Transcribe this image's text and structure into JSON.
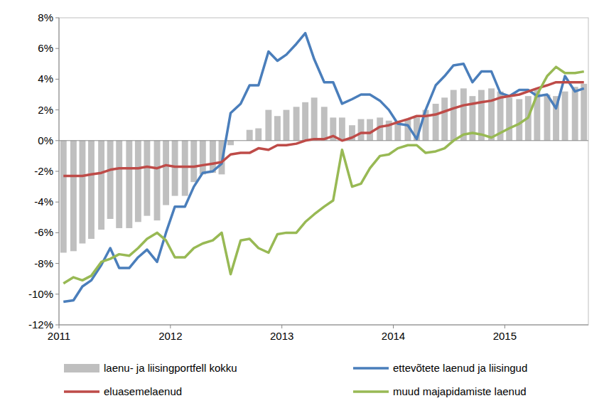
{
  "chart_data": {
    "type": "line",
    "x": [
      2011.04,
      2011.13,
      2011.21,
      2011.29,
      2011.38,
      2011.46,
      2011.54,
      2011.63,
      2011.71,
      2011.79,
      2011.88,
      2011.96,
      2012.04,
      2012.13,
      2012.21,
      2012.29,
      2012.38,
      2012.46,
      2012.54,
      2012.63,
      2012.71,
      2012.79,
      2012.88,
      2012.96,
      2013.04,
      2013.13,
      2013.21,
      2013.29,
      2013.38,
      2013.46,
      2013.54,
      2013.63,
      2013.71,
      2013.79,
      2013.88,
      2013.96,
      2014.04,
      2014.13,
      2014.21,
      2014.29,
      2014.38,
      2014.46,
      2014.54,
      2014.63,
      2014.71,
      2014.79,
      2014.88,
      2014.96,
      2015.04,
      2015.13,
      2015.21,
      2015.29,
      2015.38,
      2015.46,
      2015.54,
      2015.63,
      2015.71
    ],
    "series": [
      {
        "name": "laenu- ja liisingportfell kokku",
        "type": "bar",
        "color": "#bfbfbf",
        "values": [
          -7.3,
          -7.2,
          -6.7,
          -6.4,
          -5.8,
          -5.1,
          -5.7,
          -5.7,
          -5.3,
          -4.9,
          -5.2,
          -4.2,
          -3.6,
          -3.6,
          -2.7,
          -2.2,
          -2.1,
          -2.2,
          -0.3,
          0.0,
          0.7,
          0.8,
          2.0,
          1.6,
          2.0,
          2.2,
          2.5,
          2.8,
          2.2,
          1.5,
          1.5,
          1.0,
          1.4,
          1.4,
          1.5,
          1.3,
          1.3,
          1.4,
          1.5,
          2.0,
          2.4,
          2.8,
          3.3,
          3.4,
          2.9,
          3.3,
          3.4,
          3.2,
          2.8,
          2.7,
          2.9,
          3.3,
          3.0,
          2.9,
          3.2,
          3.5,
          3.7
        ]
      },
      {
        "name": "ettevõtete laenud ja liisingud",
        "type": "line",
        "color": "#4a7ebb",
        "values": [
          -10.5,
          -10.4,
          -9.5,
          -9.1,
          -8.1,
          -7.0,
          -8.3,
          -8.3,
          -7.6,
          -7.1,
          -7.9,
          -6.0,
          -4.3,
          -4.3,
          -3.0,
          -2.1,
          -2.0,
          -1.5,
          1.8,
          2.4,
          3.6,
          3.6,
          5.8,
          5.2,
          5.6,
          6.3,
          7.0,
          5.3,
          3.8,
          3.8,
          2.4,
          2.7,
          3.0,
          3.0,
          2.6,
          2.0,
          1.1,
          1.0,
          0.1,
          2.0,
          3.6,
          4.2,
          4.9,
          5.0,
          3.8,
          4.5,
          4.5,
          3.1,
          2.9,
          3.3,
          3.3,
          2.9,
          3.0,
          2.1,
          4.2,
          3.2,
          3.4
        ]
      },
      {
        "name": "eluasemelaenud",
        "type": "line",
        "color": "#be4b48",
        "values": [
          -2.3,
          -2.3,
          -2.3,
          -2.2,
          -2.1,
          -1.9,
          -1.8,
          -1.8,
          -1.8,
          -1.7,
          -1.8,
          -1.6,
          -1.7,
          -1.7,
          -1.7,
          -1.6,
          -1.5,
          -1.4,
          -0.9,
          -0.8,
          -0.8,
          -0.5,
          -0.6,
          -0.3,
          -0.3,
          -0.2,
          0.0,
          0.1,
          0.1,
          0.3,
          0.0,
          0.2,
          0.5,
          0.5,
          0.9,
          1.0,
          1.2,
          1.4,
          1.6,
          1.6,
          1.7,
          1.9,
          2.1,
          2.3,
          2.4,
          2.5,
          2.6,
          2.8,
          2.9,
          3.0,
          3.2,
          3.4,
          3.6,
          3.8,
          3.8,
          3.8,
          3.8
        ]
      },
      {
        "name": "muud majapidamiste laenud",
        "type": "line",
        "color": "#98b954",
        "values": [
          -9.3,
          -8.9,
          -9.1,
          -8.8,
          -7.9,
          -7.7,
          -7.4,
          -7.5,
          -7.0,
          -6.4,
          -6.0,
          -6.5,
          -7.6,
          -7.6,
          -7.0,
          -6.7,
          -6.5,
          -6.0,
          -8.7,
          -6.5,
          -6.4,
          -7.0,
          -7.3,
          -6.1,
          -6.0,
          -6.0,
          -5.3,
          -4.8,
          -4.3,
          -3.9,
          -0.6,
          -3.0,
          -2.8,
          -1.8,
          -1.0,
          -0.9,
          -0.5,
          -0.3,
          -0.3,
          -0.8,
          -0.7,
          -0.5,
          0.0,
          0.4,
          0.5,
          0.4,
          0.2,
          0.5,
          0.8,
          1.1,
          1.5,
          3.0,
          4.2,
          4.8,
          4.4,
          4.4,
          4.5
        ]
      }
    ],
    "xlim": [
      2011,
      2015.75
    ],
    "xticks": [
      2011,
      2012,
      2013,
      2014,
      2015
    ],
    "ylim": [
      -12,
      8
    ],
    "yticks": [
      {
        "value": -12,
        "label": "-12%"
      },
      {
        "value": -10,
        "label": "-10%"
      },
      {
        "value": -8,
        "label": "-8%"
      },
      {
        "value": -6,
        "label": "-6%"
      },
      {
        "value": -4,
        "label": "-4%"
      },
      {
        "value": -2,
        "label": "-2%"
      },
      {
        "value": 0,
        "label": "0%"
      },
      {
        "value": 2,
        "label": "2%"
      },
      {
        "value": 4,
        "label": "4%"
      },
      {
        "value": 6,
        "label": "6%"
      },
      {
        "value": 8,
        "label": "8%"
      }
    ],
    "grid": false,
    "legend": "bottom"
  }
}
